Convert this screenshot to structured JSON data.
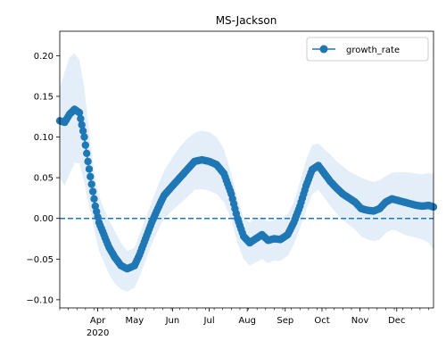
{
  "chart_data": {
    "type": "line",
    "title": "MS-Jackson",
    "xlabel": "",
    "ylabel": "",
    "x_range": [
      "2020-03-01",
      "2020-12-31"
    ],
    "ylim": [
      -0.11,
      0.23
    ],
    "y_ticks": [
      -0.1,
      -0.05,
      0.0,
      0.05,
      0.1,
      0.15,
      0.2
    ],
    "y_tick_labels": [
      "−0.10",
      "−0.05",
      "0.00",
      "0.05",
      "0.10",
      "0.15",
      "0.20"
    ],
    "x_ticks": [
      {
        "date": "2020-04-01",
        "label": "Apr"
      },
      {
        "date": "2020-05-01",
        "label": "May"
      },
      {
        "date": "2020-06-01",
        "label": "Jun"
      },
      {
        "date": "2020-07-01",
        "label": "Jul"
      },
      {
        "date": "2020-08-01",
        "label": "Aug"
      },
      {
        "date": "2020-09-01",
        "label": "Sep"
      },
      {
        "date": "2020-10-01",
        "label": "Oct"
      },
      {
        "date": "2020-11-01",
        "label": "Nov"
      },
      {
        "date": "2020-12-01",
        "label": "Dec"
      }
    ],
    "x_year_label": {
      "date": "2020-04-01",
      "label": "2020"
    },
    "reference_line": {
      "y": 0.0,
      "style": "dashed",
      "color": "#1f77b4"
    },
    "legend": {
      "position": "top-right",
      "entries": [
        "growth_rate"
      ]
    },
    "grid": false,
    "colors": {
      "series": "#1f77b4",
      "band": "#dbe8f5"
    },
    "series": [
      {
        "name": "growth_rate",
        "x": [
          "2020-03-01",
          "2020-03-05",
          "2020-03-09",
          "2020-03-13",
          "2020-03-17",
          "2020-03-21",
          "2020-03-24",
          "2020-03-27",
          "2020-03-30",
          "2020-04-02",
          "2020-04-06",
          "2020-04-10",
          "2020-04-15",
          "2020-04-20",
          "2020-04-25",
          "2020-05-01",
          "2020-05-05",
          "2020-05-10",
          "2020-05-15",
          "2020-05-20",
          "2020-05-25",
          "2020-06-01",
          "2020-06-07",
          "2020-06-13",
          "2020-06-19",
          "2020-06-25",
          "2020-07-01",
          "2020-07-07",
          "2020-07-13",
          "2020-07-19",
          "2020-07-24",
          "2020-07-29",
          "2020-08-03",
          "2020-08-08",
          "2020-08-13",
          "2020-08-18",
          "2020-08-23",
          "2020-08-28",
          "2020-09-03",
          "2020-09-08",
          "2020-09-13",
          "2020-09-18",
          "2020-09-23",
          "2020-09-28",
          "2020-10-03",
          "2020-10-08",
          "2020-10-13",
          "2020-10-18",
          "2020-10-23",
          "2020-10-28",
          "2020-11-02",
          "2020-11-07",
          "2020-11-12",
          "2020-11-17",
          "2020-11-22",
          "2020-11-27",
          "2020-12-02",
          "2020-12-07",
          "2020-12-12",
          "2020-12-17",
          "2020-12-22",
          "2020-12-27",
          "2020-12-31"
        ],
        "y": [
          0.12,
          0.118,
          0.128,
          0.134,
          0.13,
          0.1,
          0.07,
          0.042,
          0.015,
          -0.005,
          -0.02,
          -0.035,
          -0.048,
          -0.058,
          -0.062,
          -0.058,
          -0.045,
          -0.025,
          -0.005,
          0.012,
          0.028,
          0.04,
          0.05,
          0.06,
          0.07,
          0.072,
          0.07,
          0.066,
          0.055,
          0.03,
          0.0,
          -0.022,
          -0.03,
          -0.025,
          -0.02,
          -0.027,
          -0.025,
          -0.026,
          -0.02,
          -0.005,
          0.015,
          0.04,
          0.06,
          0.065,
          0.055,
          0.045,
          0.037,
          0.03,
          0.025,
          0.02,
          0.012,
          0.01,
          0.009,
          0.012,
          0.02,
          0.024,
          0.022,
          0.02,
          0.018,
          0.016,
          0.015,
          0.016,
          0.014
        ],
        "upper": [
          0.16,
          0.18,
          0.198,
          0.203,
          0.195,
          0.16,
          0.12,
          0.082,
          0.05,
          0.028,
          0.012,
          -0.002,
          -0.016,
          -0.03,
          -0.04,
          -0.036,
          -0.02,
          0.0,
          0.02,
          0.04,
          0.058,
          0.075,
          0.088,
          0.098,
          0.105,
          0.108,
          0.106,
          0.1,
          0.085,
          0.055,
          0.025,
          0.0,
          -0.005,
          0.0,
          0.002,
          -0.004,
          -0.002,
          0.0,
          0.005,
          0.02,
          0.045,
          0.072,
          0.09,
          0.092,
          0.085,
          0.078,
          0.07,
          0.064,
          0.058,
          0.054,
          0.05,
          0.047,
          0.045,
          0.047,
          0.052,
          0.056,
          0.057,
          0.057,
          0.056,
          0.055,
          0.054,
          0.056,
          0.055
        ],
        "lower": [
          0.05,
          0.04,
          0.055,
          0.068,
          0.068,
          0.045,
          0.022,
          0.002,
          -0.02,
          -0.04,
          -0.054,
          -0.068,
          -0.08,
          -0.087,
          -0.09,
          -0.085,
          -0.072,
          -0.052,
          -0.032,
          -0.015,
          0.0,
          0.01,
          0.018,
          0.026,
          0.035,
          0.036,
          0.034,
          0.03,
          0.02,
          -0.002,
          -0.03,
          -0.05,
          -0.058,
          -0.054,
          -0.05,
          -0.055,
          -0.052,
          -0.052,
          -0.046,
          -0.032,
          -0.012,
          0.01,
          0.03,
          0.035,
          0.025,
          0.015,
          0.006,
          -0.002,
          -0.008,
          -0.014,
          -0.022,
          -0.026,
          -0.028,
          -0.026,
          -0.018,
          -0.014,
          -0.016,
          -0.02,
          -0.022,
          -0.024,
          -0.026,
          -0.03,
          -0.038
        ]
      }
    ]
  }
}
